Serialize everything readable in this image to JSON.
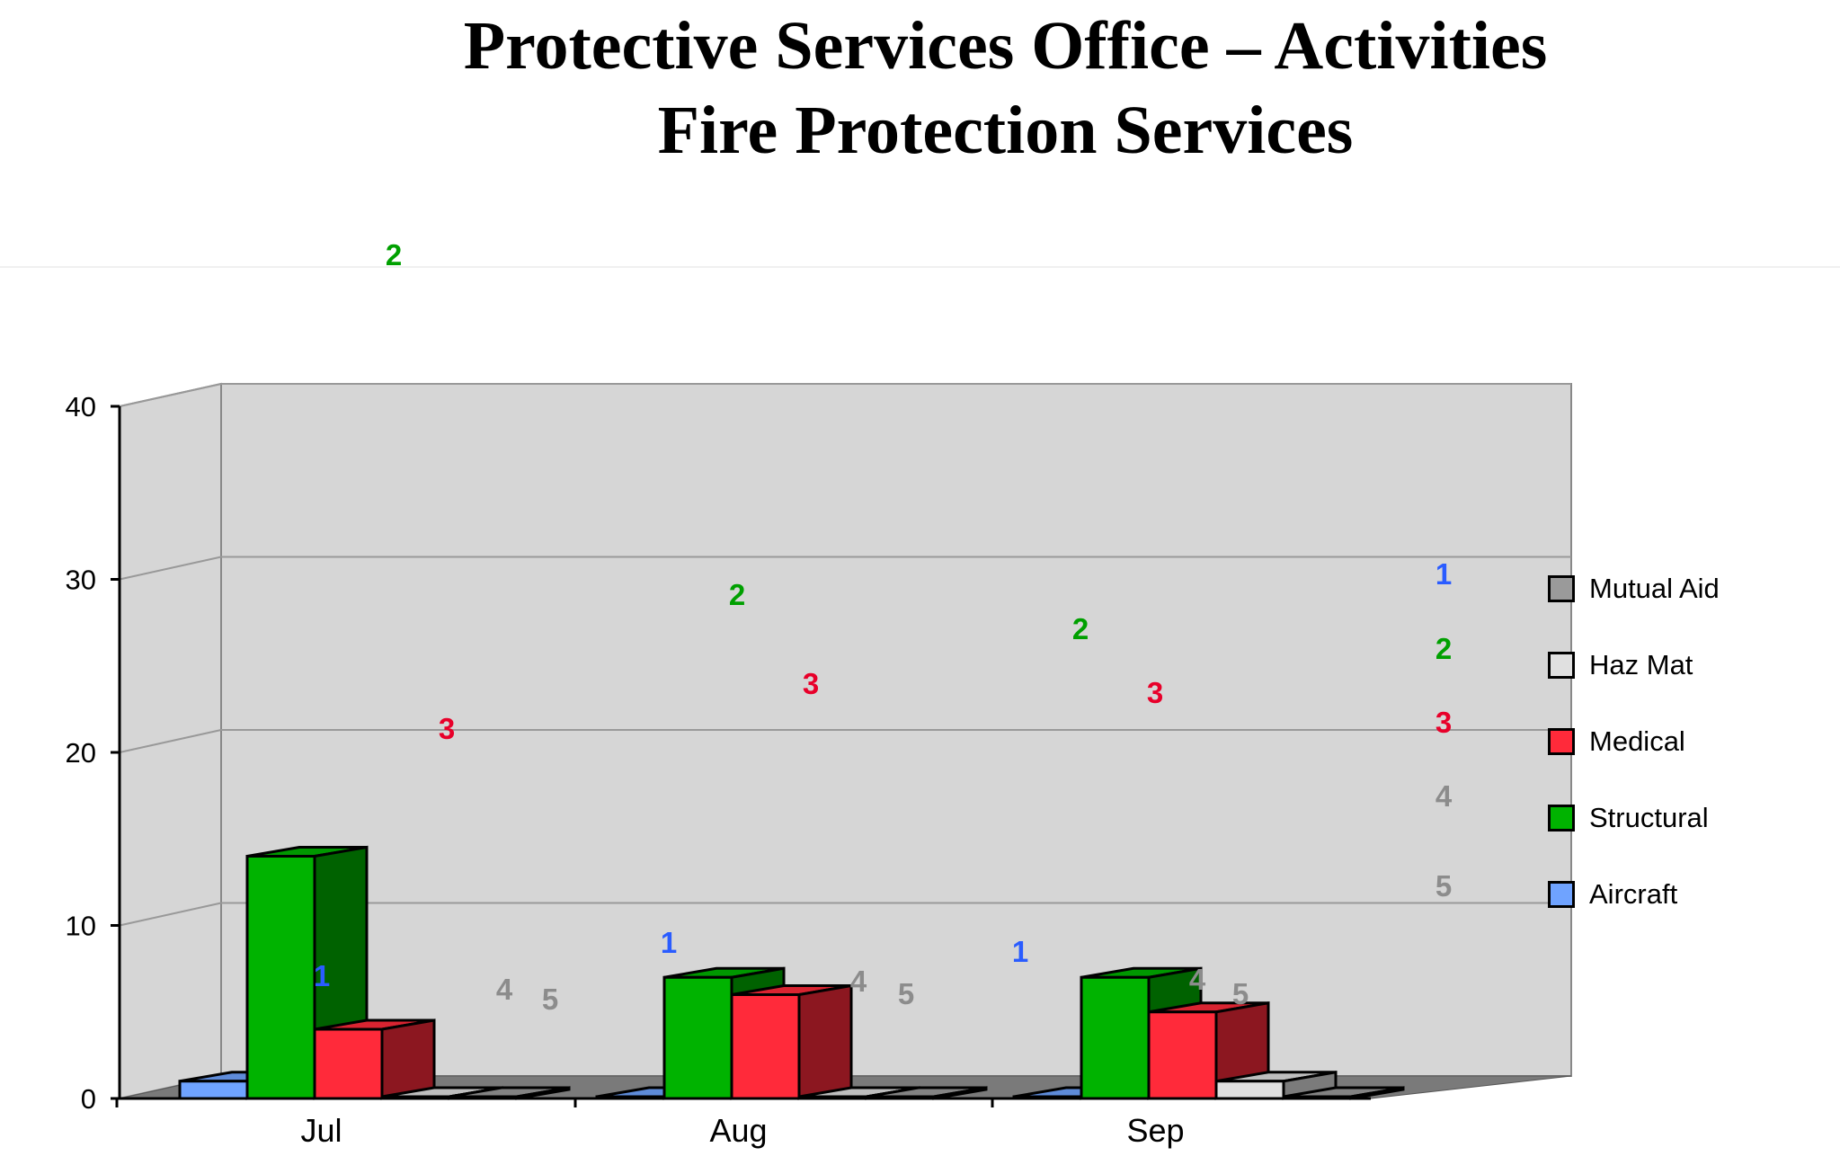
{
  "title_line1": "Protective Services Office – Activities",
  "title_line2": "Fire Protection Services",
  "chart_data": {
    "type": "bar",
    "categories": [
      "Jul",
      "Aug",
      "Sep"
    ],
    "ylim": [
      0,
      40
    ],
    "yticks": [
      0,
      10,
      20,
      30,
      40
    ],
    "grid": true,
    "legend_placement": "right",
    "series": [
      {
        "name": "Aircraft",
        "color": "#6fa3ff",
        "values": [
          1,
          0,
          0
        ]
      },
      {
        "name": "Structural",
        "color": "#00b300",
        "values": [
          14,
          7,
          7
        ]
      },
      {
        "name": "Medical",
        "color": "#ff2a3a",
        "values": [
          4,
          6,
          5
        ]
      },
      {
        "name": "Haz Mat",
        "color": "#e0e0e0",
        "values": [
          0,
          0,
          1
        ]
      },
      {
        "name": "Mutual Aid",
        "color": "#9a9a9a",
        "values": [
          0,
          0,
          0
        ]
      }
    ],
    "legend_order": [
      "Mutual Aid",
      "Haz Mat",
      "Medical",
      "Structural",
      "Aircraft"
    ],
    "annotations": [
      {
        "text": "2",
        "color": "#00a000"
      },
      {
        "text": "1",
        "color": "#2a5cff"
      },
      {
        "text": "3",
        "color": "#e8002a"
      },
      {
        "text": "4",
        "color": "#8c8c8c"
      },
      {
        "text": "5",
        "color": "#8c8c8c"
      },
      {
        "text": "2",
        "color": "#00a000"
      },
      {
        "text": "3",
        "color": "#e8002a"
      },
      {
        "text": "1",
        "color": "#2a5cff"
      },
      {
        "text": "4",
        "color": "#8c8c8c"
      },
      {
        "text": "5",
        "color": "#8c8c8c"
      },
      {
        "text": "2",
        "color": "#00a000"
      },
      {
        "text": "3",
        "color": "#e8002a"
      },
      {
        "text": "1",
        "color": "#2a5cff"
      },
      {
        "text": "4",
        "color": "#8c8c8c"
      },
      {
        "text": "5",
        "color": "#8c8c8c"
      },
      {
        "text": "1",
        "color": "#2a5cff"
      },
      {
        "text": "2",
        "color": "#00a000"
      },
      {
        "text": "3",
        "color": "#e8002a"
      },
      {
        "text": "4",
        "color": "#8c8c8c"
      },
      {
        "text": "5",
        "color": "#8c8c8c"
      }
    ]
  }
}
